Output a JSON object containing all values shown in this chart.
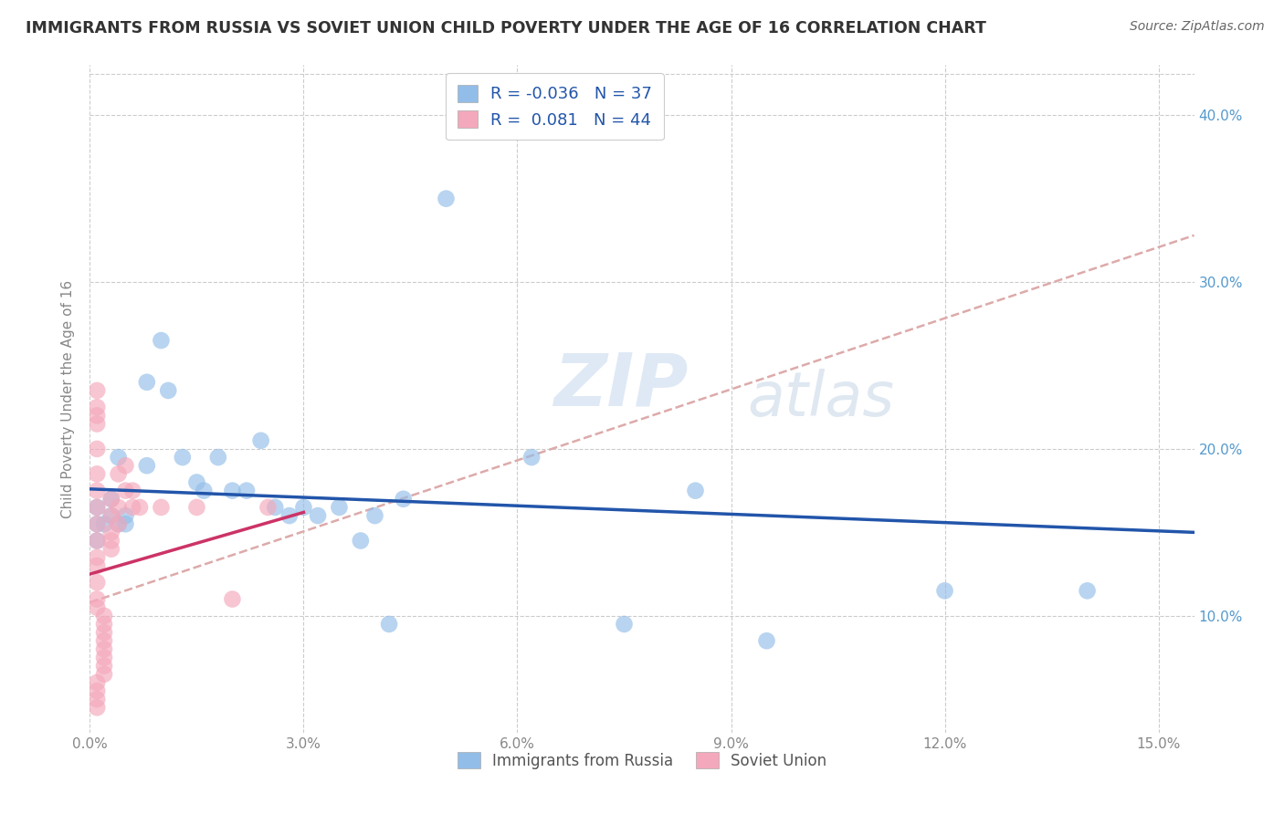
{
  "title": "IMMIGRANTS FROM RUSSIA VS SOVIET UNION CHILD POVERTY UNDER THE AGE OF 16 CORRELATION CHART",
  "source": "Source: ZipAtlas.com",
  "ylabel": "Child Poverty Under the Age of 16",
  "xlim": [
    0.0,
    0.155
  ],
  "ylim": [
    0.03,
    0.43
  ],
  "xticks": [
    0.0,
    0.03,
    0.06,
    0.09,
    0.12,
    0.15
  ],
  "yticks": [
    0.1,
    0.2,
    0.3,
    0.4
  ],
  "xticklabels": [
    "0.0%",
    "3.0%",
    "6.0%",
    "9.0%",
    "12.0%",
    "15.0%"
  ],
  "yticklabels_left": [
    "10.0%",
    "20.0%",
    "30.0%",
    "40.0%"
  ],
  "yticklabels_right": [
    "10.0%",
    "20.0%",
    "30.0%",
    "40.0%"
  ],
  "watermark_zip": "ZIP",
  "watermark_atlas": "atlas",
  "legend_R1": "-0.036",
  "legend_N1": "37",
  "legend_R2": "0.081",
  "legend_N2": "44",
  "legend_label1": "Immigrants from Russia",
  "legend_label2": "Soviet Union",
  "russia_x": [
    0.004,
    0.008,
    0.001,
    0.001,
    0.001,
    0.002,
    0.003,
    0.003,
    0.004,
    0.005,
    0.005,
    0.008,
    0.01,
    0.011,
    0.013,
    0.015,
    0.016,
    0.018,
    0.02,
    0.022,
    0.024,
    0.026,
    0.028,
    0.03,
    0.032,
    0.035,
    0.038,
    0.04,
    0.042,
    0.044,
    0.05,
    0.062,
    0.075,
    0.085,
    0.095,
    0.12,
    0.14
  ],
  "russia_y": [
    0.195,
    0.19,
    0.165,
    0.155,
    0.145,
    0.155,
    0.17,
    0.16,
    0.155,
    0.155,
    0.16,
    0.24,
    0.265,
    0.235,
    0.195,
    0.18,
    0.175,
    0.195,
    0.175,
    0.175,
    0.205,
    0.165,
    0.16,
    0.165,
    0.16,
    0.165,
    0.145,
    0.16,
    0.095,
    0.17,
    0.35,
    0.195,
    0.095,
    0.175,
    0.085,
    0.115,
    0.115
  ],
  "soviet_x": [
    0.001,
    0.001,
    0.001,
    0.001,
    0.001,
    0.001,
    0.001,
    0.001,
    0.001,
    0.001,
    0.001,
    0.001,
    0.001,
    0.001,
    0.001,
    0.002,
    0.002,
    0.002,
    0.002,
    0.002,
    0.002,
    0.002,
    0.002,
    0.003,
    0.003,
    0.003,
    0.003,
    0.003,
    0.004,
    0.004,
    0.004,
    0.005,
    0.005,
    0.006,
    0.006,
    0.007,
    0.01,
    0.015,
    0.02,
    0.025,
    0.001,
    0.001,
    0.001,
    0.001
  ],
  "soviet_y": [
    0.215,
    0.225,
    0.235,
    0.22,
    0.2,
    0.185,
    0.175,
    0.165,
    0.155,
    0.145,
    0.135,
    0.13,
    0.12,
    0.11,
    0.105,
    0.1,
    0.095,
    0.09,
    0.085,
    0.08,
    0.075,
    0.07,
    0.065,
    0.17,
    0.16,
    0.15,
    0.145,
    0.14,
    0.185,
    0.165,
    0.155,
    0.19,
    0.175,
    0.175,
    0.165,
    0.165,
    0.165,
    0.165,
    0.11,
    0.165,
    0.06,
    0.055,
    0.05,
    0.045
  ],
  "blue_scatter_color": "#92bde8",
  "pink_scatter_color": "#f4a8bb",
  "blue_line_color": "#2255aa",
  "pink_line_color": "#cc3366",
  "dashed_line_color": "#ddaaaa",
  "background_color": "#ffffff",
  "title_color": "#333333",
  "source_color": "#666666",
  "tick_color": "#888888",
  "right_tick_color": "#5599cc",
  "grid_color": "#cccccc"
}
